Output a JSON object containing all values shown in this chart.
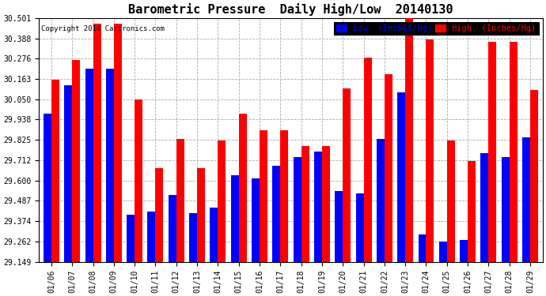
{
  "title": "Barometric Pressure  Daily High/Low  20140130",
  "copyright": "Copyright 2014 Cartronics.com",
  "legend_low": "Low  (Inches/Hg)",
  "legend_high": "High  (Inches/Hg)",
  "dates": [
    "01/06",
    "01/07",
    "01/08",
    "01/09",
    "01/10",
    "01/11",
    "01/12",
    "01/13",
    "01/14",
    "01/15",
    "01/16",
    "01/17",
    "01/18",
    "01/19",
    "01/20",
    "01/21",
    "01/22",
    "01/23",
    "01/24",
    "01/25",
    "01/26",
    "01/27",
    "01/28",
    "01/29"
  ],
  "low": [
    29.97,
    30.13,
    30.22,
    30.22,
    29.41,
    29.43,
    29.52,
    29.42,
    29.45,
    29.63,
    29.61,
    29.68,
    29.73,
    29.76,
    29.54,
    29.53,
    29.83,
    30.09,
    29.3,
    29.26,
    29.27,
    29.75,
    29.73,
    29.84
  ],
  "high": [
    30.16,
    30.27,
    30.47,
    30.47,
    30.05,
    29.67,
    29.83,
    29.67,
    29.82,
    29.97,
    29.88,
    29.88,
    29.79,
    29.79,
    30.11,
    30.28,
    30.19,
    30.51,
    30.38,
    29.82,
    29.71,
    30.37,
    30.37,
    30.1
  ],
  "ymin": 29.149,
  "ymax": 30.501,
  "yticks": [
    29.149,
    29.262,
    29.374,
    29.487,
    29.6,
    29.712,
    29.825,
    29.938,
    30.05,
    30.163,
    30.276,
    30.388,
    30.501
  ],
  "low_color": "#0000ff",
  "high_color": "#ff0000",
  "bg_color": "#ffffff",
  "grid_color": "#aaaaaa",
  "bar_width": 0.38,
  "title_fontsize": 11,
  "tick_fontsize": 7,
  "legend_fontsize": 7.5
}
